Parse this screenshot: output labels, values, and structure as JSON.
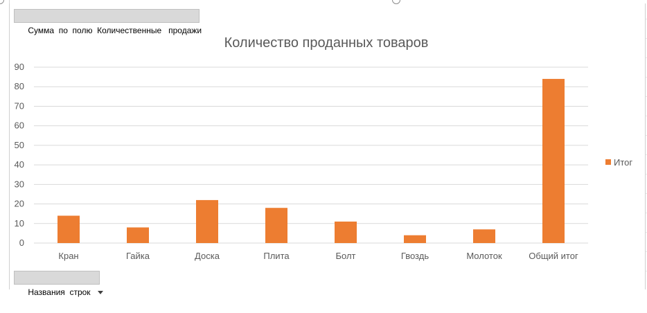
{
  "pivot": {
    "value_field_button": "Сумма  по  полю  Количественные   продажи",
    "row_field_button": "Названия  строк"
  },
  "chart_data": {
    "type": "bar",
    "title": "Количество проданных товаров",
    "categories": [
      "Кран",
      "Гайка",
      "Доска",
      "Плита",
      "Болт",
      "Гвоздь",
      "Молоток",
      "Общий итог"
    ],
    "series": [
      {
        "name": "Итог",
        "values": [
          14,
          8,
          22,
          18,
          11,
          4,
          7,
          84
        ]
      }
    ],
    "ylim": [
      0,
      90
    ],
    "yticks": [
      0,
      10,
      20,
      30,
      40,
      50,
      60,
      70,
      80,
      90
    ],
    "grid": true,
    "legend_position": "right",
    "colors": {
      "bar": "#ED7D31",
      "grid": "#D9D9D9",
      "text": "#595959"
    }
  }
}
